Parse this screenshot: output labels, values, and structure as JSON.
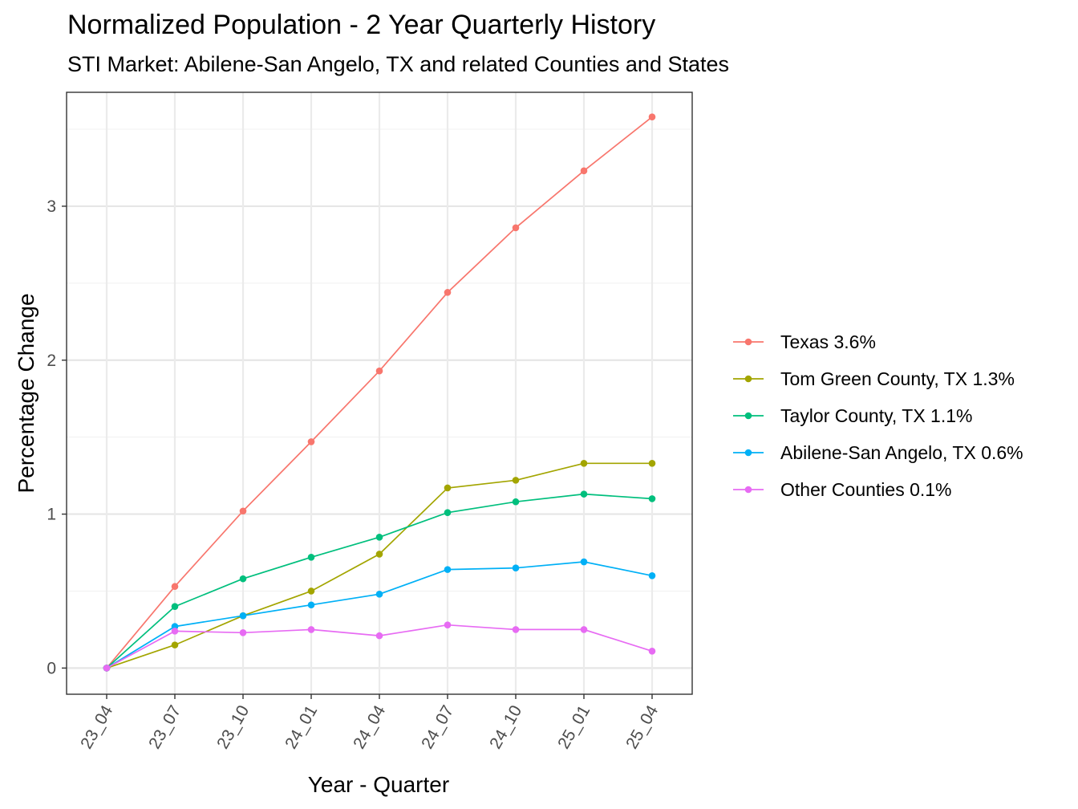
{
  "title": "Normalized Population - 2 Year Quarterly History",
  "subtitle": "STI Market: Abilene-San Angelo, TX and related Counties and States",
  "chart_data": {
    "type": "line",
    "title": "Normalized Population - 2 Year Quarterly History",
    "subtitle": "STI Market: Abilene-San Angelo, TX and related Counties and States",
    "xlabel": "Year - Quarter",
    "ylabel": "Percentage Change",
    "categories": [
      "23_04",
      "23_07",
      "23_10",
      "24_01",
      "24_04",
      "24_07",
      "24_10",
      "25_01",
      "25_04"
    ],
    "y_ticks": [
      0,
      1,
      2,
      3
    ],
    "ylim": [
      -0.17,
      3.74
    ],
    "grid": true,
    "legend_position": "right",
    "series": [
      {
        "name": "Texas 3.6%",
        "color": "#F8766D",
        "values": [
          0,
          0.53,
          1.02,
          1.47,
          1.93,
          2.44,
          2.86,
          3.23,
          3.58
        ]
      },
      {
        "name": "Tom Green County, TX 1.3%",
        "color": "#A3A500",
        "values": [
          0,
          0.15,
          0.34,
          0.5,
          0.74,
          1.17,
          1.22,
          1.33,
          1.33
        ]
      },
      {
        "name": "Taylor County, TX 1.1%",
        "color": "#00BF7D",
        "values": [
          0,
          0.4,
          0.58,
          0.72,
          0.85,
          1.01,
          1.08,
          1.13,
          1.1
        ]
      },
      {
        "name": "Abilene-San Angelo, TX 0.6%",
        "color": "#00B0F6",
        "values": [
          0,
          0.27,
          0.34,
          0.41,
          0.48,
          0.64,
          0.65,
          0.69,
          0.6
        ]
      },
      {
        "name": "Other Counties 0.1%",
        "color": "#E76BF3",
        "values": [
          0,
          0.24,
          0.23,
          0.25,
          0.21,
          0.28,
          0.25,
          0.25,
          0.11
        ]
      }
    ]
  }
}
